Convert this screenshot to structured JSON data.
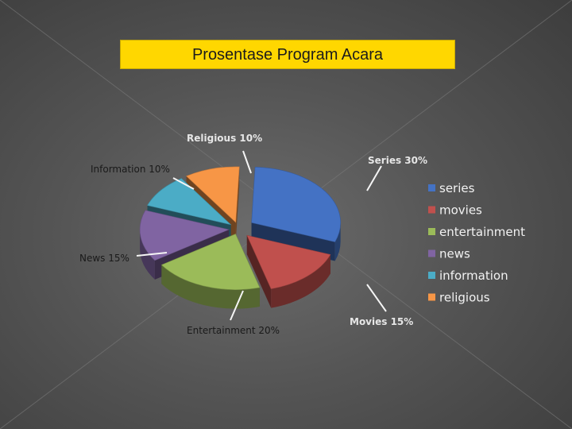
{
  "slide": {
    "title": "Prosentase Program Acara"
  },
  "chart_data": {
    "type": "pie",
    "title": "Prosentase Program Acara",
    "legend_position": "right",
    "slices": [
      {
        "legend": "series",
        "label": "Series 30%",
        "value": 30,
        "color": "#4472c4"
      },
      {
        "legend": "movies",
        "label": "Movies  15%",
        "value": 15,
        "color": "#c0504d"
      },
      {
        "legend": "entertainment",
        "label": "Entertainment 20%",
        "value": 20,
        "color": "#9bbb59"
      },
      {
        "legend": "news",
        "label": "News 15%",
        "value": 15,
        "color": "#8064a2"
      },
      {
        "legend": "information",
        "label": "Information 10%",
        "value": 10,
        "color": "#4bacc6"
      },
      {
        "legend": "religious",
        "label": "Religious 10%",
        "value": 10,
        "color": "#f79646"
      }
    ]
  }
}
